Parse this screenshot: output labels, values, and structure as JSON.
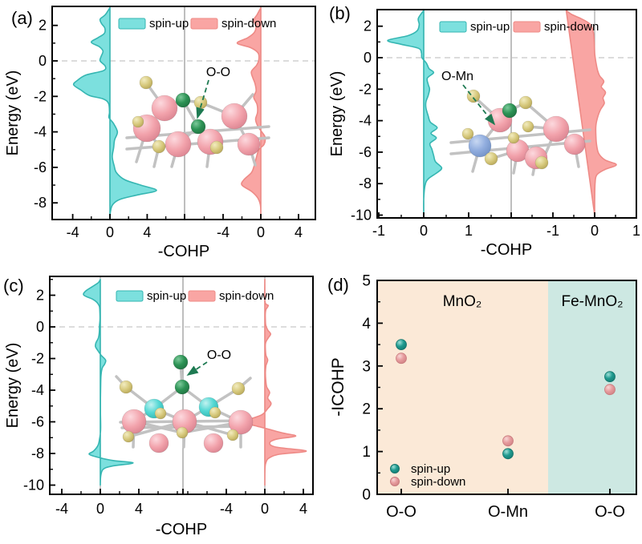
{
  "colors": {
    "spin_up_fill": "#7CE0DE",
    "spin_up_stroke": "#35B6B2",
    "spin_down_fill": "#F9A5A3",
    "spin_down_stroke": "#EE8A86",
    "scatter_up": "#1F9A8F",
    "scatter_up_stroke": "#14746B",
    "scatter_down": "#E79C9E",
    "scatter_down_stroke": "#C97B7E",
    "mno2_bg": "#FBE9D7",
    "femno2_bg": "#CDE8E2",
    "axis": "#000000",
    "divider": "#A8A8A8",
    "fermi_dash": "#C8C8C8",
    "atom_mn": "#F2A2AB",
    "atom_o": "#D6C87B",
    "atom_ads_o": "#2D9355",
    "atom_fe": "#92AEDF",
    "atom_mn_cyan": "#55D8D4",
    "bond": "#C2C2C2"
  },
  "panels": {
    "a": {
      "label": "(a)",
      "xlabel": "-COHP",
      "ylabel": "Energy (eV)",
      "legend_up": "spin-up",
      "legend_down": "spin-down",
      "inset_label": "O-O"
    },
    "b": {
      "label": "(b)",
      "xlabel": "-COHP",
      "ylabel": "Energy (eV)",
      "legend_up": "spin-up",
      "legend_down": "spin-down",
      "inset_label": "O-Mn"
    },
    "c": {
      "label": "(c)",
      "xlabel": "-COHP",
      "ylabel": "Energy (eV)",
      "legend_up": "spin-up",
      "legend_down": "spin-down",
      "inset_label": "O-O"
    },
    "d": {
      "label": "(d)",
      "ylabel": "-ICOHP",
      "legend_up": "spin-up",
      "legend_down": "spin-down",
      "regions": [
        {
          "name": "MnO₂"
        },
        {
          "name": "Fe-MnO₂"
        }
      ]
    }
  },
  "chart_data": [
    {
      "id": "a",
      "type": "area",
      "title": "COHP of O-O bond on MnO2",
      "xlabel": "-COHP",
      "ylabel": "Energy (eV)",
      "ylim": [
        3,
        -9
      ],
      "yticks": [
        2,
        0,
        -2,
        -4,
        -6,
        -8
      ],
      "fermi_level": 0,
      "grid": false,
      "sub_axes": [
        {
          "name": "spin-up",
          "ticks": [
            -4,
            0,
            4
          ],
          "minor_step": 2
        },
        {
          "name": "spin-down",
          "ticks": [
            -4,
            0,
            4
          ],
          "minor_step": 2
        }
      ],
      "series": [
        {
          "name": "spin-up",
          "points": [
            [
              3,
              0
            ],
            [
              2.6,
              -0.5
            ],
            [
              2.35,
              -1.05
            ],
            [
              2.1,
              -0.9
            ],
            [
              1.85,
              -0.55
            ],
            [
              1.55,
              -0.6
            ],
            [
              1.3,
              -1.3
            ],
            [
              1.05,
              -2.0
            ],
            [
              0.8,
              -1.15
            ],
            [
              0.55,
              -0.75
            ],
            [
              0.25,
              -0.95
            ],
            [
              0,
              -1.05
            ],
            [
              -0.3,
              -0.5
            ],
            [
              -0.55,
              -0.7
            ],
            [
              -0.8,
              -2.6
            ],
            [
              -1.1,
              -3.5
            ],
            [
              -1.35,
              -3.9
            ],
            [
              -1.65,
              -3.1
            ],
            [
              -1.95,
              -2.2
            ],
            [
              -2.15,
              -0.7
            ],
            [
              -2.4,
              -0.15
            ],
            [
              -2.9,
              -0.05
            ],
            [
              -3.2,
              -0.1
            ],
            [
              -3.5,
              0.35
            ],
            [
              -4.0,
              0.8
            ],
            [
              -4.45,
              0.5
            ],
            [
              -4.9,
              0.4
            ],
            [
              -5.4,
              0.25
            ],
            [
              -5.9,
              0.45
            ],
            [
              -6.3,
              0.7
            ],
            [
              -6.7,
              1.6
            ],
            [
              -7.0,
              3.3
            ],
            [
              -7.3,
              5.0
            ],
            [
              -7.55,
              3.0
            ],
            [
              -7.8,
              1.1
            ],
            [
              -8.1,
              0.3
            ],
            [
              -8.5,
              0.05
            ],
            [
              -9,
              0
            ]
          ]
        },
        {
          "name": "spin-down",
          "points": [
            [
              3,
              0
            ],
            [
              2.6,
              -0.4
            ],
            [
              2.3,
              -0.75
            ],
            [
              1.95,
              -0.5
            ],
            [
              1.6,
              -0.7
            ],
            [
              1.3,
              -1.4
            ],
            [
              1.0,
              -2.5
            ],
            [
              0.75,
              -1.1
            ],
            [
              0.45,
              -0.3
            ],
            [
              0.1,
              -0.2
            ],
            [
              -0.25,
              -0.45
            ],
            [
              -0.6,
              -1.0
            ],
            [
              -0.95,
              -0.85
            ],
            [
              -1.3,
              -0.6
            ],
            [
              -1.7,
              -0.5
            ],
            [
              -2.05,
              -0.75
            ],
            [
              -2.45,
              -0.4
            ],
            [
              -2.9,
              -0.35
            ],
            [
              -3.3,
              -0.55
            ],
            [
              -3.7,
              -0.3
            ],
            [
              -4.0,
              0.1
            ],
            [
              -4.3,
              0.45
            ],
            [
              -4.7,
              0.35
            ],
            [
              -5.0,
              -0.2
            ],
            [
              -5.4,
              -0.45
            ],
            [
              -5.9,
              -0.7
            ],
            [
              -6.3,
              -1.0
            ],
            [
              -6.7,
              -1.8
            ],
            [
              -7.0,
              -2.0
            ],
            [
              -7.35,
              -1.0
            ],
            [
              -7.7,
              -0.35
            ],
            [
              -8.1,
              -0.05
            ],
            [
              -8.6,
              0
            ],
            [
              -9,
              0
            ]
          ]
        }
      ]
    },
    {
      "id": "b",
      "type": "area",
      "title": "COHP of O-Mn bond on Fe-MnO2",
      "xlabel": "-COHP",
      "ylabel": "Energy (eV)",
      "ylim": [
        3,
        -10
      ],
      "yticks": [
        2,
        0,
        -2,
        -4,
        -6,
        -8,
        -10
      ],
      "fermi_level": 0,
      "grid": false,
      "sub_axes": [
        {
          "name": "spin-up",
          "ticks": [
            -1,
            0,
            1
          ],
          "minor_step": 0.5
        },
        {
          "name": "spin-down",
          "ticks": [
            -1,
            0,
            1
          ],
          "minor_step": 0.5
        }
      ],
      "series": [
        {
          "name": "spin-up",
          "points": [
            [
              3,
              0
            ],
            [
              2.5,
              -0.12
            ],
            [
              2.1,
              -0.1
            ],
            [
              1.7,
              -0.15
            ],
            [
              1.4,
              -0.35
            ],
            [
              1.1,
              -0.8
            ],
            [
              0.85,
              -0.5
            ],
            [
              0.6,
              -0.12
            ],
            [
              0.3,
              -0.05
            ],
            [
              0,
              -0.04
            ],
            [
              -0.35,
              0.06
            ],
            [
              -0.7,
              0.12
            ],
            [
              -0.95,
              0.22
            ],
            [
              -1.3,
              0.08
            ],
            [
              -1.7,
              0.1
            ],
            [
              -2.0,
              0.13
            ],
            [
              -2.4,
              0.1
            ],
            [
              -2.8,
              0.05
            ],
            [
              -3.2,
              0.05
            ],
            [
              -3.7,
              0.1
            ],
            [
              -4.1,
              0.15
            ],
            [
              -4.45,
              0.3
            ],
            [
              -4.8,
              0.16
            ],
            [
              -5.1,
              0.28
            ],
            [
              -5.45,
              0.14
            ],
            [
              -5.8,
              0.18
            ],
            [
              -6.2,
              0.22
            ],
            [
              -6.6,
              0.26
            ],
            [
              -7.0,
              0.4
            ],
            [
              -7.3,
              0.3
            ],
            [
              -7.7,
              0.1
            ],
            [
              -8.1,
              0.03
            ],
            [
              -9,
              0
            ],
            [
              -10,
              0
            ]
          ]
        },
        {
          "name": "spin-down",
          "points": [
            [
              3,
              -0.68
            ],
            [
              2.75,
              -0.55
            ],
            [
              2.45,
              -0.3
            ],
            [
              2.1,
              -0.1
            ],
            [
              1.6,
              -0.03
            ],
            [
              1.0,
              -0.01
            ],
            [
              0.3,
              0
            ],
            [
              -0.3,
              0.03
            ],
            [
              -0.8,
              0.07
            ],
            [
              -1.15,
              0.12
            ],
            [
              -1.5,
              0.22
            ],
            [
              -1.85,
              0.16
            ],
            [
              -2.2,
              0.26
            ],
            [
              -2.55,
              0.2
            ],
            [
              -2.9,
              0.23
            ],
            [
              -3.3,
              0.14
            ],
            [
              -3.7,
              0.08
            ],
            [
              -4.3,
              0.03
            ],
            [
              -5.0,
              0.03
            ],
            [
              -5.6,
              0.05
            ],
            [
              -6.1,
              0.1
            ],
            [
              -6.5,
              0.25
            ],
            [
              -6.8,
              0.52
            ],
            [
              -7.1,
              0.25
            ],
            [
              -7.45,
              0.05
            ],
            [
              -8.0,
              0.01
            ],
            [
              -9,
              0
            ],
            [
              -10,
              0
            ]
          ]
        }
      ]
    },
    {
      "id": "c",
      "type": "area",
      "title": "COHP of O-O bond (side view)",
      "xlabel": "-COHP",
      "ylabel": "Energy (eV)",
      "ylim": [
        3,
        -10
      ],
      "yticks": [
        2,
        0,
        -2,
        -4,
        -6,
        -8,
        -10
      ],
      "fermi_level": 0,
      "grid": false,
      "sub_axes": [
        {
          "name": "spin-up",
          "ticks": [
            -4,
            0,
            4
          ],
          "minor_step": 2
        },
        {
          "name": "spin-down",
          "ticks": [
            -4,
            0,
            4
          ],
          "minor_step": 2
        }
      ],
      "series": [
        {
          "name": "spin-up",
          "points": [
            [
              3,
              0
            ],
            [
              2.8,
              -0.2
            ],
            [
              2.55,
              -0.8
            ],
            [
              2.25,
              -1.55
            ],
            [
              2.0,
              -1.7
            ],
            [
              1.75,
              -0.8
            ],
            [
              1.55,
              -0.35
            ],
            [
              1.3,
              -0.1
            ],
            [
              1.0,
              -0.05
            ],
            [
              0.5,
              -0.03
            ],
            [
              0.1,
              -0.08
            ],
            [
              -0.3,
              -0.1
            ],
            [
              -0.7,
              -0.2
            ],
            [
              -1.0,
              -0.45
            ],
            [
              -1.25,
              -0.5
            ],
            [
              -1.5,
              -0.25
            ],
            [
              -1.8,
              0.1
            ],
            [
              -2.1,
              0.55
            ],
            [
              -2.35,
              0.45
            ],
            [
              -2.6,
              0.2
            ],
            [
              -3.0,
              0.08
            ],
            [
              -3.6,
              0.04
            ],
            [
              -4.5,
              0.02
            ],
            [
              -5.5,
              0.02
            ],
            [
              -6.5,
              0.03
            ],
            [
              -7.1,
              -0.08
            ],
            [
              -7.5,
              -0.25
            ],
            [
              -7.85,
              -0.7
            ],
            [
              -8.05,
              -1.15
            ],
            [
              -8.25,
              -0.2
            ],
            [
              -8.45,
              1.4
            ],
            [
              -8.6,
              3.4
            ],
            [
              -8.8,
              1.2
            ],
            [
              -9.0,
              0.3
            ],
            [
              -9.4,
              0.05
            ],
            [
              -10,
              0
            ]
          ]
        },
        {
          "name": "spin-down",
          "points": [
            [
              3,
              0
            ],
            [
              1.6,
              0.02
            ],
            [
              1.35,
              0.35
            ],
            [
              1.1,
              0.12
            ],
            [
              0.8,
              0.05
            ],
            [
              0.45,
              0.06
            ],
            [
              0.1,
              0.1
            ],
            [
              -0.2,
              0.3
            ],
            [
              -0.45,
              0.6
            ],
            [
              -0.7,
              0.35
            ],
            [
              -1.0,
              0.08
            ],
            [
              -1.4,
              0.06
            ],
            [
              -1.8,
              0.12
            ],
            [
              -2.1,
              0.3
            ],
            [
              -2.45,
              0.12
            ],
            [
              -2.9,
              0.06
            ],
            [
              -3.4,
              0.1
            ],
            [
              -3.8,
              0.2
            ],
            [
              -4.15,
              0.5
            ],
            [
              -4.5,
              0.3
            ],
            [
              -4.85,
              0.65
            ],
            [
              -5.2,
              0.25
            ],
            [
              -5.55,
              -0.3
            ],
            [
              -5.85,
              -1.6
            ],
            [
              -6.05,
              -2.1
            ],
            [
              -6.25,
              -1.0
            ],
            [
              -6.45,
              0.3
            ],
            [
              -6.7,
              1.8
            ],
            [
              -6.9,
              3.2
            ],
            [
              -7.1,
              1.2
            ],
            [
              -7.35,
              0.5
            ],
            [
              -7.6,
              1.2
            ],
            [
              -7.85,
              4.3
            ],
            [
              -8.05,
              1.5
            ],
            [
              -8.3,
              0.4
            ],
            [
              -8.6,
              0.1
            ],
            [
              -9.0,
              0.02
            ],
            [
              -10,
              0
            ]
          ]
        }
      ]
    },
    {
      "id": "d",
      "type": "scatter",
      "title": "-ICOHP comparison",
      "ylabel": "-ICOHP",
      "ylim": [
        0,
        5
      ],
      "yticks": [
        0,
        1,
        2,
        3,
        4,
        5
      ],
      "categories": [
        "O-O",
        "O-Mn",
        "O-O"
      ],
      "regions": [
        {
          "label": "MnO₂",
          "span": [
            0,
            2
          ]
        },
        {
          "label": "Fe-MnO₂",
          "span": [
            2,
            3
          ]
        }
      ],
      "legend_position": "bottom-left",
      "series": [
        {
          "name": "spin-up",
          "values": [
            3.5,
            0.95,
            2.75
          ]
        },
        {
          "name": "spin-down",
          "values": [
            3.18,
            1.25,
            2.45
          ]
        }
      ]
    }
  ]
}
